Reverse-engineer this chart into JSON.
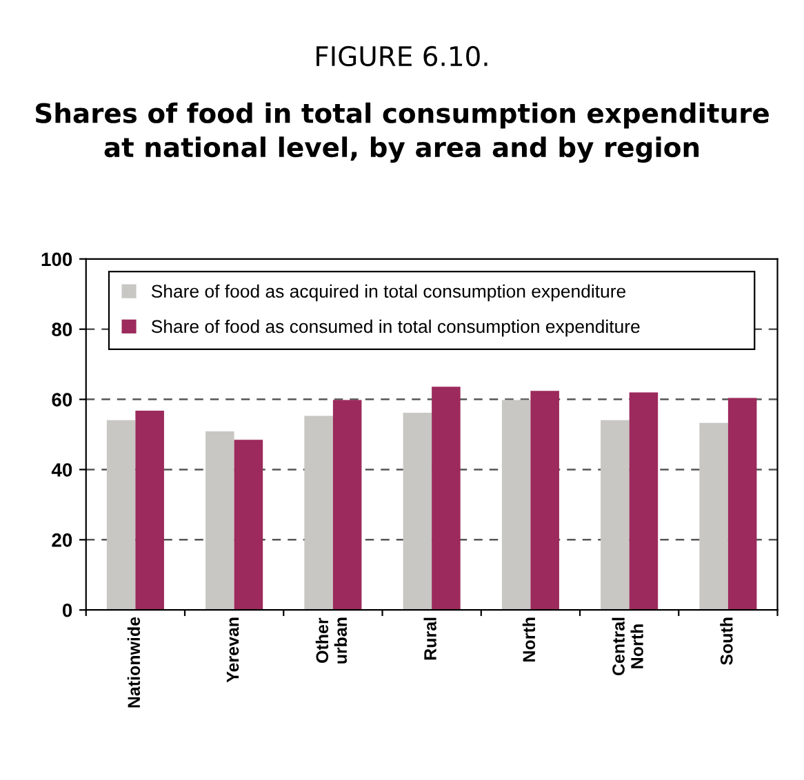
{
  "chart_data": {
    "type": "bar",
    "title": "FIGURE 6.10.",
    "subtitle": "Shares of food in total consumption expenditure\nat national level, by area and by region",
    "categories": [
      "Nationwide",
      "Yerevan",
      "Other\nurban",
      "Rural",
      "North",
      "Central\nNorth",
      "South"
    ],
    "series": [
      {
        "name": "Share of food as acquired in total consumption expenditure",
        "color": "#c8c7c3",
        "values": [
          54.1,
          50.9,
          55.3,
          56.2,
          59.8,
          54.1,
          53.3
        ]
      },
      {
        "name": "Share of food as consumed in total consumption expenditure",
        "color": "#9c2a5c",
        "values": [
          56.8,
          48.5,
          59.8,
          63.6,
          62.4,
          62.0,
          60.4
        ]
      }
    ],
    "ylim": [
      0,
      100
    ],
    "yticks": [
      0,
      20,
      40,
      60,
      80,
      100
    ],
    "grid": "y",
    "legend": "top"
  }
}
